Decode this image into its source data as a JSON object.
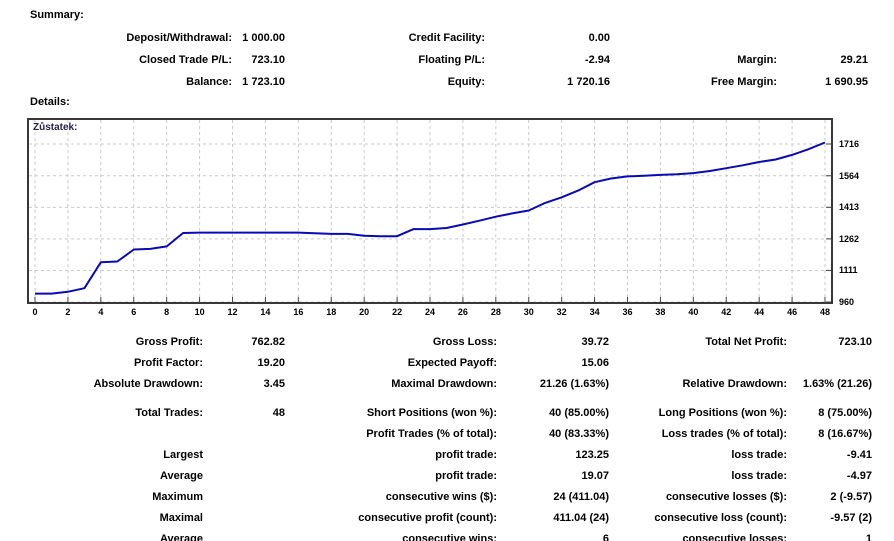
{
  "summary": {
    "title": "Summary:",
    "rows": [
      [
        "Deposit/Withdrawal:",
        "1 000.00",
        "Credit Facility:",
        "0.00",
        "",
        ""
      ],
      [
        "Closed Trade P/L:",
        "723.10",
        "Floating P/L:",
        "-2.94",
        "Margin:",
        "29.21"
      ],
      [
        "Balance:",
        "1 723.10",
        "Equity:",
        "1 720.16",
        "Free Margin:",
        "1 690.95"
      ]
    ]
  },
  "details": {
    "title": "Details:"
  },
  "chart_data": {
    "type": "line",
    "title": "Zůstatek:",
    "xlabel": "",
    "ylabel": "",
    "legend": "none",
    "grid": "dashed-both-axes",
    "line_color": "#0a0ab4",
    "grid_color": "#c9c9c9",
    "xlim": [
      0,
      48
    ],
    "ylim": [
      960,
      1830
    ],
    "xticks": [
      0,
      2,
      4,
      6,
      8,
      10,
      12,
      14,
      16,
      18,
      20,
      22,
      24,
      26,
      28,
      30,
      32,
      34,
      36,
      38,
      40,
      42,
      44,
      46,
      48
    ],
    "yticks": [
      960,
      1111,
      1262,
      1413,
      1564,
      1716
    ],
    "x": [
      0,
      1,
      2,
      3,
      4,
      5,
      6,
      7,
      8,
      9,
      10,
      11,
      12,
      13,
      14,
      15,
      16,
      17,
      18,
      19,
      20,
      21,
      22,
      23,
      24,
      25,
      26,
      27,
      28,
      29,
      30,
      31,
      32,
      33,
      34,
      35,
      36,
      37,
      38,
      39,
      40,
      41,
      42,
      43,
      44,
      45,
      46,
      47,
      48
    ],
    "values": [
      1000,
      1000,
      1009,
      1026,
      1150,
      1154,
      1211,
      1214,
      1226,
      1290,
      1292,
      1292,
      1292,
      1292,
      1292,
      1292,
      1292,
      1289,
      1286,
      1286,
      1277,
      1275,
      1275,
      1309,
      1309,
      1314,
      1331,
      1349,
      1368,
      1384,
      1398,
      1434,
      1461,
      1493,
      1533,
      1551,
      1561,
      1564,
      1568,
      1571,
      1577,
      1587,
      1600,
      1614,
      1630,
      1642,
      1664,
      1691,
      1723
    ]
  },
  "stats": {
    "groups": [
      [
        [
          "Gross Profit:",
          "762.82",
          "Gross Loss:",
          "39.72",
          "Total Net Profit:",
          "723.10"
        ],
        [
          "Profit Factor:",
          "19.20",
          "Expected Payoff:",
          "15.06",
          "",
          ""
        ],
        [
          "Absolute Drawdown:",
          "3.45",
          "Maximal Drawdown:",
          "21.26 (1.63%)",
          "Relative Drawdown:",
          "1.63% (21.26)"
        ]
      ],
      [
        [
          "Total Trades:",
          "48",
          "Short Positions (won %):",
          "40 (85.00%)",
          "Long Positions (won %):",
          "8 (75.00%)"
        ],
        [
          "",
          "",
          "Profit Trades (% of total):",
          "40 (83.33%)",
          "Loss trades (% of total):",
          "8 (16.67%)"
        ],
        [
          "Largest",
          "",
          "profit trade:",
          "123.25",
          "loss trade:",
          "-9.41"
        ],
        [
          "Average",
          "",
          "profit trade:",
          "19.07",
          "loss trade:",
          "-4.97"
        ],
        [
          "Maximum",
          "",
          "consecutive wins ($):",
          "24 (411.04)",
          "consecutive losses ($):",
          "2 (-9.57)"
        ],
        [
          "Maximal",
          "",
          "consecutive profit (count):",
          "411.04 (24)",
          "consecutive loss (count):",
          "-9.57 (2)"
        ],
        [
          "Average",
          "",
          "consecutive wins:",
          "6",
          "consecutive losses:",
          "1"
        ]
      ]
    ]
  }
}
